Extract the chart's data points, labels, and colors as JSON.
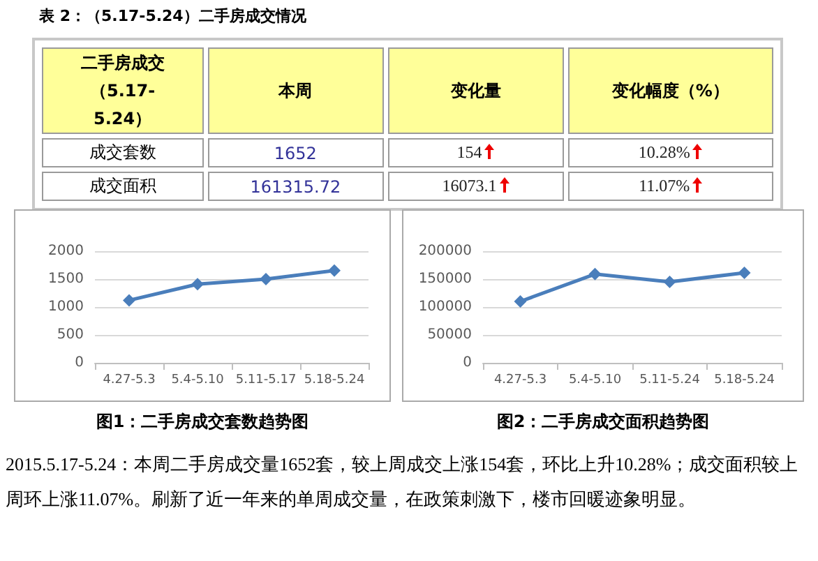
{
  "chart_data": [
    {
      "type": "other",
      "title": "表 2：（5.17-5.24）二手房成交情况",
      "categories": [
        "二手房成交（5.17-5.24）",
        "本周",
        "变化量",
        "变化幅度（%）"
      ],
      "y_categories": [
        "成交套数",
        "成交面积"
      ],
      "cell_labels": [
        [
          "1652",
          "154",
          "10.28%"
        ],
        [
          "161315.72",
          "16073.1",
          "11.07%"
        ]
      ]
    },
    {
      "type": "line",
      "title": "图1：二手房成交套数趋势图",
      "categories": [
        "4.27-5.3",
        "5.4-5.10",
        "5.11-5.17",
        "5.18-5.24"
      ],
      "values": [
        1120,
        1410,
        1500,
        1652
      ],
      "color": "#4a7ebb",
      "ylim": [
        0,
        2000
      ],
      "yticks": [
        0,
        500,
        1000,
        1500,
        2000
      ],
      "grid": "y",
      "marker": "diamond",
      "line_style": "solid"
    },
    {
      "type": "line",
      "title": "图2：二手房成交面积趋势图",
      "categories": [
        "4.27-5.3",
        "5.4-5.10",
        "5.11-5.24",
        "5.18-5.24"
      ],
      "values": [
        110000,
        159000,
        145000,
        161315.72
      ],
      "color": "#4a7ebb",
      "ylim": [
        0,
        200000
      ],
      "yticks": [
        0,
        50000,
        100000,
        150000,
        200000
      ],
      "grid": "y",
      "marker": "diamond",
      "line_style": "solid"
    },
    {
      "type": "other",
      "annotations": [
        "2015.5.17-5.24：本周二手房成交量1652套，较上周成交上涨154套，环比上升10.28%；成交面积较上周环上涨11.07%。刷新了近一年来的单周成交量，在政策刺激下，楼市回暖迹象明显。"
      ]
    }
  ]
}
